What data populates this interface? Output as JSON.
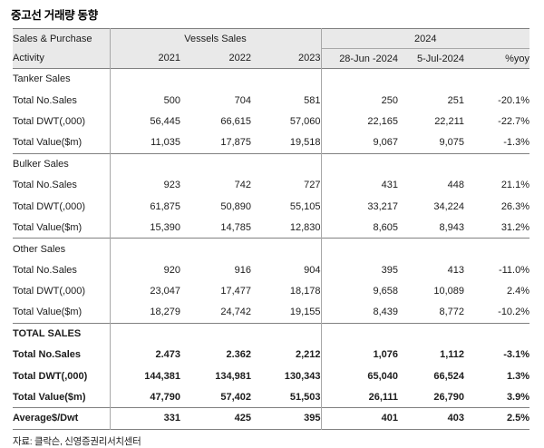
{
  "title": "중고선 거래량 동향",
  "source_note": "자료: 클락슨, 신영증권리서치센터",
  "colors": {
    "header_bg": "#e9e9e9",
    "border_strong": "#808080",
    "border_light": "#a8a8a8",
    "text": "#1c1c1c"
  },
  "table": {
    "header": {
      "col1_line1": "Sales & Purchase",
      "col1_line2": "Activity",
      "group_vessels": "Vessels Sales",
      "group_2024": "2024",
      "year_cols": [
        "2021",
        "2022",
        "2023"
      ],
      "cols_2024": [
        "28-Jun -2024",
        "5-Jul-2024",
        "%yoy"
      ]
    },
    "sections": [
      {
        "name": "Tanker Sales",
        "bold": false,
        "rows": [
          {
            "label": "Total No.Sales",
            "values": [
              "500",
              "704",
              "581",
              "250",
              "251",
              "-20.1%"
            ]
          },
          {
            "label": "Total DWT(,000)",
            "values": [
              "56,445",
              "66,615",
              "57,060",
              "22,165",
              "22,211",
              "-22.7%"
            ]
          },
          {
            "label": "Total Value($m)",
            "values": [
              "11,035",
              "17,875",
              "19,518",
              "9,067",
              "9,075",
              "-1.3%"
            ]
          }
        ]
      },
      {
        "name": "Bulker Sales",
        "bold": false,
        "rows": [
          {
            "label": "Total No.Sales",
            "values": [
              "923",
              "742",
              "727",
              "431",
              "448",
              "21.1%"
            ]
          },
          {
            "label": "Total DWT(,000)",
            "values": [
              "61,875",
              "50,890",
              "55,105",
              "33,217",
              "34,224",
              "26.3%"
            ]
          },
          {
            "label": "Total Value($m)",
            "values": [
              "15,390",
              "14,785",
              "12,830",
              "8,605",
              "8,943",
              "31.2%"
            ]
          }
        ]
      },
      {
        "name": "Other Sales",
        "bold": false,
        "rows": [
          {
            "label": "Total No.Sales",
            "values": [
              "920",
              "916",
              "904",
              "395",
              "413",
              "-11.0%"
            ]
          },
          {
            "label": "Total DWT(,000)",
            "values": [
              "23,047",
              "17,477",
              "18,178",
              "9,658",
              "10,089",
              "2.4%"
            ]
          },
          {
            "label": "Total Value($m)",
            "values": [
              "18,279",
              "24,742",
              "19,155",
              "8,439",
              "8,772",
              "-10.2%"
            ]
          }
        ]
      },
      {
        "name": "TOTAL SALES",
        "bold": true,
        "rows": [
          {
            "label": "Total No.Sales",
            "values": [
              "2.473",
              "2.362",
              "2,212",
              "1,076",
              "1,112",
              "-3.1%"
            ]
          },
          {
            "label": "Total DWT(,000)",
            "values": [
              "144,381",
              "134,981",
              "130,343",
              "65,040",
              "66,524",
              "1.3%"
            ]
          },
          {
            "label": "Total Value($m)",
            "values": [
              "47,790",
              "57,402",
              "51,503",
              "26,111",
              "26,790",
              "3.9%"
            ]
          }
        ]
      },
      {
        "name": null,
        "bold": true,
        "rows": [
          {
            "label": "Average$/Dwt",
            "values": [
              "331",
              "425",
              "395",
              "401",
              "403",
              "2.5%"
            ]
          }
        ]
      }
    ]
  }
}
